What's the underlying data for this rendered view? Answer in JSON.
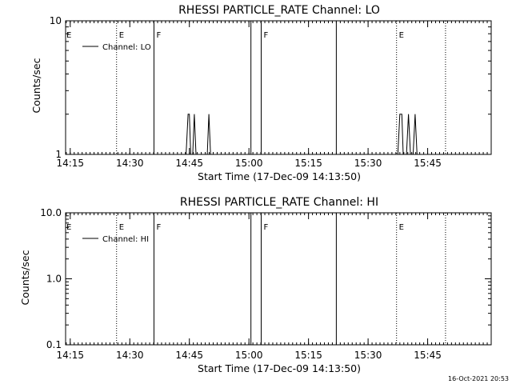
{
  "timestamp": "16-Oct-2021 20:53",
  "chart_data": [
    {
      "type": "line",
      "title": "RHESSI PARTICLE_RATE Channel: LO",
      "xlabel": "Start Time (17-Dec-09 14:13:50)",
      "ylabel": "Counts/sec",
      "xlim": [
        "14:13:50",
        "16:01:00"
      ],
      "ylim": [
        1,
        10
      ],
      "yscale": "log",
      "xticks": [
        "14:15",
        "14:30",
        "14:45",
        "15:00",
        "15:15",
        "15:30",
        "15:45"
      ],
      "yticks": [
        "1",
        "10"
      ],
      "legend": {
        "label": "Channel: LO",
        "position": "top-left"
      },
      "series": [
        {
          "name": "Channel: LO",
          "points": [
            [
              "14:44:10",
              1
            ],
            [
              "14:44:40",
              2
            ],
            [
              "14:45:00",
              2
            ],
            [
              "14:45:20",
              1
            ],
            [
              "14:45:50",
              1
            ],
            [
              "14:46:15",
              2
            ],
            [
              "14:46:40",
              1
            ],
            [
              "14:49:30",
              1
            ],
            [
              "14:49:55",
              2
            ],
            [
              "14:50:20",
              1
            ],
            [
              "15:37:30",
              1
            ],
            [
              "15:38:00",
              2
            ],
            [
              "15:38:30",
              2
            ],
            [
              "15:38:50",
              1
            ],
            [
              "15:39:40",
              1
            ],
            [
              "15:40:10",
              2
            ],
            [
              "15:40:40",
              1
            ],
            [
              "15:41:20",
              1
            ],
            [
              "15:41:50",
              2
            ],
            [
              "15:42:20",
              1
            ]
          ]
        }
      ],
      "event_lines": [
        {
          "time": "14:26:40",
          "style": "dotted",
          "label": "E"
        },
        {
          "time": "14:36:05",
          "style": "solid",
          "label": "F"
        },
        {
          "time": "15:00:30",
          "style": "solid",
          "label": ""
        },
        {
          "time": "15:03:05",
          "style": "solid",
          "label": "F"
        },
        {
          "time": "15:22:00",
          "style": "solid",
          "label": ""
        },
        {
          "time": "15:37:10",
          "style": "dotted",
          "label": "E"
        },
        {
          "time": "15:49:30",
          "style": "dotted",
          "label": ""
        }
      ],
      "edge_label": "E"
    },
    {
      "type": "line",
      "title": "RHESSI PARTICLE_RATE Channel: HI",
      "xlabel": "Start Time (17-Dec-09 14:13:50)",
      "ylabel": "Counts/sec",
      "xlim": [
        "14:13:50",
        "16:01:00"
      ],
      "ylim": [
        0.1,
        10
      ],
      "yscale": "log",
      "xticks": [
        "14:15",
        "14:30",
        "14:45",
        "15:00",
        "15:15",
        "15:30",
        "15:45"
      ],
      "yticks": [
        "0.1",
        "1.0",
        "10.0"
      ],
      "legend": {
        "label": "Channel: HI",
        "position": "top-left"
      },
      "series": [
        {
          "name": "Channel: HI",
          "points": []
        }
      ],
      "event_lines": [
        {
          "time": "14:26:40",
          "style": "dotted",
          "label": "E"
        },
        {
          "time": "14:36:05",
          "style": "solid",
          "label": "F"
        },
        {
          "time": "15:00:30",
          "style": "solid",
          "label": ""
        },
        {
          "time": "15:03:05",
          "style": "solid",
          "label": "F"
        },
        {
          "time": "15:22:00",
          "style": "solid",
          "label": ""
        },
        {
          "time": "15:37:10",
          "style": "dotted",
          "label": "E"
        },
        {
          "time": "15:49:30",
          "style": "dotted",
          "label": ""
        }
      ],
      "edge_label": "E"
    }
  ]
}
